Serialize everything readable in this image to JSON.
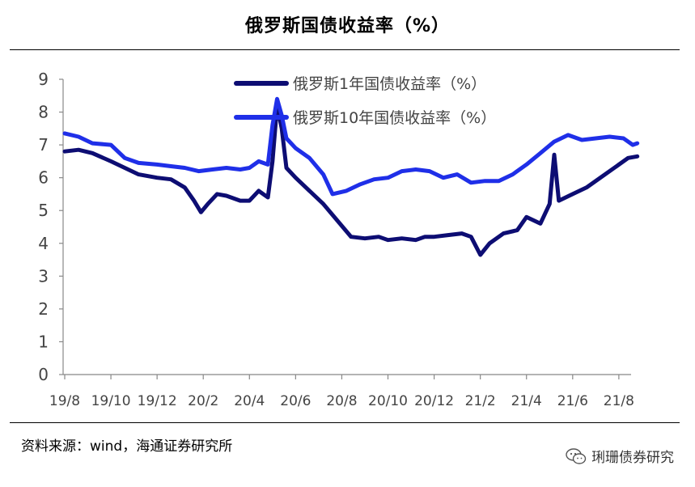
{
  "source_note": "资料来源：wind，海通证券研究所",
  "watermark_text": "琍珊债券研究",
  "chart_data": {
    "type": "line",
    "title": "俄罗斯国债收益率（%）",
    "xlabel": "",
    "ylabel": "",
    "ylim": [
      0,
      9
    ],
    "yticks": [
      "0",
      "1",
      "2",
      "3",
      "4",
      "5",
      "6",
      "7",
      "8",
      "9"
    ],
    "xticks": [
      "19/8",
      "19/10",
      "19/12",
      "20/2",
      "20/4",
      "20/6",
      "20/8",
      "20/10",
      "20/12",
      "21/2",
      "21/4",
      "21/6",
      "21/8"
    ],
    "legend_position": "top-center",
    "grid": false,
    "series": [
      {
        "name": "俄罗斯1年国债收益率（%）",
        "color": "#0d0d73",
        "points": [
          [
            0,
            6.8
          ],
          [
            0.3,
            6.85
          ],
          [
            0.6,
            6.75
          ],
          [
            1.0,
            6.5
          ],
          [
            1.3,
            6.3
          ],
          [
            1.6,
            6.1
          ],
          [
            2.0,
            6.0
          ],
          [
            2.3,
            5.95
          ],
          [
            2.6,
            5.7
          ],
          [
            2.8,
            5.3
          ],
          [
            2.95,
            4.95
          ],
          [
            3.1,
            5.2
          ],
          [
            3.3,
            5.5
          ],
          [
            3.5,
            5.45
          ],
          [
            3.8,
            5.3
          ],
          [
            4.0,
            5.3
          ],
          [
            4.2,
            5.6
          ],
          [
            4.4,
            5.4
          ],
          [
            4.5,
            6.5
          ],
          [
            4.6,
            8.2
          ],
          [
            4.7,
            7.5
          ],
          [
            4.8,
            6.3
          ],
          [
            5.0,
            6.0
          ],
          [
            5.3,
            5.6
          ],
          [
            5.6,
            5.2
          ],
          [
            5.9,
            4.7
          ],
          [
            6.2,
            4.2
          ],
          [
            6.5,
            4.15
          ],
          [
            6.8,
            4.2
          ],
          [
            7.0,
            4.1
          ],
          [
            7.3,
            4.15
          ],
          [
            7.6,
            4.1
          ],
          [
            7.8,
            4.2
          ],
          [
            8.0,
            4.2
          ],
          [
            8.3,
            4.25
          ],
          [
            8.6,
            4.3
          ],
          [
            8.8,
            4.2
          ],
          [
            9.0,
            3.65
          ],
          [
            9.2,
            4.0
          ],
          [
            9.5,
            4.3
          ],
          [
            9.8,
            4.4
          ],
          [
            10.0,
            4.8
          ],
          [
            10.3,
            4.6
          ],
          [
            10.5,
            5.2
          ],
          [
            10.6,
            6.7
          ],
          [
            10.7,
            5.3
          ],
          [
            11.0,
            5.5
          ],
          [
            11.3,
            5.7
          ],
          [
            11.6,
            6.0
          ],
          [
            11.9,
            6.3
          ],
          [
            12.2,
            6.6
          ],
          [
            12.4,
            6.65
          ]
        ]
      },
      {
        "name": "俄罗斯10年国债收益率（%）",
        "color": "#1f2fe8",
        "points": [
          [
            0,
            7.35
          ],
          [
            0.3,
            7.25
          ],
          [
            0.6,
            7.05
          ],
          [
            1.0,
            7.0
          ],
          [
            1.3,
            6.6
          ],
          [
            1.6,
            6.45
          ],
          [
            2.0,
            6.4
          ],
          [
            2.3,
            6.35
          ],
          [
            2.6,
            6.3
          ],
          [
            2.9,
            6.2
          ],
          [
            3.2,
            6.25
          ],
          [
            3.5,
            6.3
          ],
          [
            3.8,
            6.25
          ],
          [
            4.0,
            6.3
          ],
          [
            4.2,
            6.5
          ],
          [
            4.4,
            6.4
          ],
          [
            4.5,
            7.6
          ],
          [
            4.6,
            8.4
          ],
          [
            4.7,
            7.9
          ],
          [
            4.8,
            7.2
          ],
          [
            5.0,
            6.9
          ],
          [
            5.3,
            6.6
          ],
          [
            5.6,
            6.1
          ],
          [
            5.8,
            5.5
          ],
          [
            6.1,
            5.6
          ],
          [
            6.4,
            5.8
          ],
          [
            6.7,
            5.95
          ],
          [
            7.0,
            6.0
          ],
          [
            7.3,
            6.2
          ],
          [
            7.6,
            6.25
          ],
          [
            7.9,
            6.2
          ],
          [
            8.2,
            6.0
          ],
          [
            8.5,
            6.1
          ],
          [
            8.8,
            5.85
          ],
          [
            9.1,
            5.9
          ],
          [
            9.4,
            5.9
          ],
          [
            9.7,
            6.1
          ],
          [
            10.0,
            6.4
          ],
          [
            10.3,
            6.75
          ],
          [
            10.6,
            7.1
          ],
          [
            10.9,
            7.3
          ],
          [
            11.2,
            7.15
          ],
          [
            11.5,
            7.2
          ],
          [
            11.8,
            7.25
          ],
          [
            12.1,
            7.2
          ],
          [
            12.3,
            7.0
          ],
          [
            12.4,
            7.05
          ]
        ]
      }
    ]
  }
}
